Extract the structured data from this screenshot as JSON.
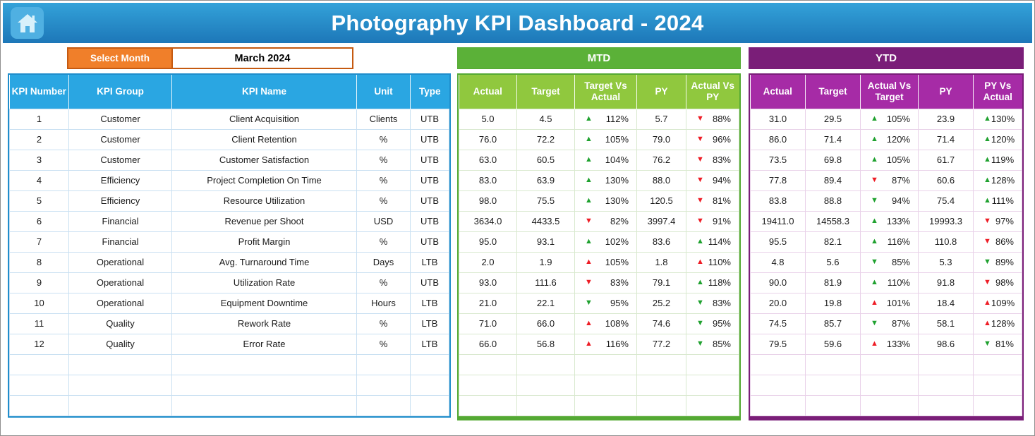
{
  "colors": {
    "banner_top": "#33a2d9",
    "banner_bottom": "#1d77b8",
    "home_tile": "#4fb0e2",
    "home_glyph": "#d8f1fb",
    "select_month_orange": "#f07f2a",
    "select_month_border": "#c55a11",
    "kpi_header_blue": "#2aa6e2",
    "kpi_border_blue": "#1f8dcb",
    "kpi_grid": "#c9e0f2",
    "mtd_bar_green": "#5bb138",
    "mtd_header_green": "#90c83e",
    "mtd_border_green": "#54a933",
    "mtd_grid": "#d9e9cf",
    "ytd_bar_purple": "#7a1e78",
    "ytd_header_purple": "#a62ba6",
    "ytd_border_purple": "#7a1e78",
    "ytd_grid": "#e9d2e9",
    "trend_green": "#1fa12f",
    "trend_red": "#ee1c25"
  },
  "header": {
    "title": "Photography KPI Dashboard - 2024"
  },
  "month_selector": {
    "label": "Select Month",
    "value": "March 2024"
  },
  "kpi_table": {
    "headers": [
      "KPI Number",
      "KPI Group",
      "KPI Name",
      "Unit",
      "Type"
    ],
    "rows": [
      [
        "1",
        "Customer",
        "Client Acquisition",
        "Clients",
        "UTB"
      ],
      [
        "2",
        "Customer",
        "Client Retention",
        "%",
        "UTB"
      ],
      [
        "3",
        "Customer",
        "Customer Satisfaction",
        "%",
        "UTB"
      ],
      [
        "4",
        "Efficiency",
        "Project Completion On Time",
        "%",
        "UTB"
      ],
      [
        "5",
        "Efficiency",
        "Resource Utilization",
        "%",
        "UTB"
      ],
      [
        "6",
        "Financial",
        "Revenue per Shoot",
        "USD",
        "UTB"
      ],
      [
        "7",
        "Financial",
        "Profit Margin",
        "%",
        "UTB"
      ],
      [
        "8",
        "Operational",
        "Avg. Turnaround Time",
        "Days",
        "LTB"
      ],
      [
        "9",
        "Operational",
        "Utilization Rate",
        "%",
        "UTB"
      ],
      [
        "10",
        "Operational",
        "Equipment Downtime",
        "Hours",
        "LTB"
      ],
      [
        "11",
        "Quality",
        "Rework Rate",
        "%",
        "LTB"
      ],
      [
        "12",
        "Quality",
        "Error Rate",
        "%",
        "LTB"
      ]
    ],
    "empty_rows": 3
  },
  "mtd": {
    "title": "MTD",
    "headers": [
      "Actual",
      "Target",
      "Target Vs Actual",
      "PY",
      "Actual Vs PY"
    ],
    "rows": [
      [
        "5.0",
        "4.5",
        {
          "arrow": "up",
          "color": "green",
          "value": "112%"
        },
        "5.7",
        {
          "arrow": "down",
          "color": "red",
          "value": "88%"
        }
      ],
      [
        "76.0",
        "72.2",
        {
          "arrow": "up",
          "color": "green",
          "value": "105%"
        },
        "79.0",
        {
          "arrow": "down",
          "color": "red",
          "value": "96%"
        }
      ],
      [
        "63.0",
        "60.5",
        {
          "arrow": "up",
          "color": "green",
          "value": "104%"
        },
        "76.2",
        {
          "arrow": "down",
          "color": "red",
          "value": "83%"
        }
      ],
      [
        "83.0",
        "63.9",
        {
          "arrow": "up",
          "color": "green",
          "value": "130%"
        },
        "88.0",
        {
          "arrow": "down",
          "color": "red",
          "value": "94%"
        }
      ],
      [
        "98.0",
        "75.5",
        {
          "arrow": "up",
          "color": "green",
          "value": "130%"
        },
        "120.5",
        {
          "arrow": "down",
          "color": "red",
          "value": "81%"
        }
      ],
      [
        "3634.0",
        "4433.5",
        {
          "arrow": "down",
          "color": "red",
          "value": "82%"
        },
        "3997.4",
        {
          "arrow": "down",
          "color": "red",
          "value": "91%"
        }
      ],
      [
        "95.0",
        "93.1",
        {
          "arrow": "up",
          "color": "green",
          "value": "102%"
        },
        "83.6",
        {
          "arrow": "up",
          "color": "green",
          "value": "114%"
        }
      ],
      [
        "2.0",
        "1.9",
        {
          "arrow": "up",
          "color": "red",
          "value": "105%"
        },
        "1.8",
        {
          "arrow": "up",
          "color": "red",
          "value": "110%"
        }
      ],
      [
        "93.0",
        "111.6",
        {
          "arrow": "down",
          "color": "red",
          "value": "83%"
        },
        "79.1",
        {
          "arrow": "up",
          "color": "green",
          "value": "118%"
        }
      ],
      [
        "21.0",
        "22.1",
        {
          "arrow": "down",
          "color": "green",
          "value": "95%"
        },
        "25.2",
        {
          "arrow": "down",
          "color": "green",
          "value": "83%"
        }
      ],
      [
        "71.0",
        "66.0",
        {
          "arrow": "up",
          "color": "red",
          "value": "108%"
        },
        "74.6",
        {
          "arrow": "down",
          "color": "green",
          "value": "95%"
        }
      ],
      [
        "66.0",
        "56.8",
        {
          "arrow": "up",
          "color": "red",
          "value": "116%"
        },
        "77.2",
        {
          "arrow": "down",
          "color": "green",
          "value": "85%"
        }
      ]
    ],
    "empty_rows": 3
  },
  "ytd": {
    "title": "YTD",
    "headers": [
      "Actual",
      "Target",
      "Actual Vs Target",
      "PY",
      "PY Vs Actual"
    ],
    "rows": [
      [
        "31.0",
        "29.5",
        {
          "arrow": "up",
          "color": "green",
          "value": "105%"
        },
        "23.9",
        {
          "arrow": "up",
          "color": "green",
          "value": "130%"
        }
      ],
      [
        "86.0",
        "71.4",
        {
          "arrow": "up",
          "color": "green",
          "value": "120%"
        },
        "71.4",
        {
          "arrow": "up",
          "color": "green",
          "value": "120%"
        }
      ],
      [
        "73.5",
        "69.8",
        {
          "arrow": "up",
          "color": "green",
          "value": "105%"
        },
        "61.7",
        {
          "arrow": "up",
          "color": "green",
          "value": "119%"
        }
      ],
      [
        "77.8",
        "89.4",
        {
          "arrow": "down",
          "color": "red",
          "value": "87%"
        },
        "60.6",
        {
          "arrow": "up",
          "color": "green",
          "value": "128%"
        }
      ],
      [
        "83.8",
        "88.8",
        {
          "arrow": "down",
          "color": "green",
          "value": "94%"
        },
        "75.4",
        {
          "arrow": "up",
          "color": "green",
          "value": "111%"
        }
      ],
      [
        "19411.0",
        "14558.3",
        {
          "arrow": "up",
          "color": "green",
          "value": "133%"
        },
        "19993.3",
        {
          "arrow": "down",
          "color": "red",
          "value": "97%"
        }
      ],
      [
        "95.5",
        "82.1",
        {
          "arrow": "up",
          "color": "green",
          "value": "116%"
        },
        "110.8",
        {
          "arrow": "down",
          "color": "red",
          "value": "86%"
        }
      ],
      [
        "4.8",
        "5.6",
        {
          "arrow": "down",
          "color": "green",
          "value": "85%"
        },
        "5.3",
        {
          "arrow": "down",
          "color": "green",
          "value": "89%"
        }
      ],
      [
        "90.0",
        "81.9",
        {
          "arrow": "up",
          "color": "green",
          "value": "110%"
        },
        "91.8",
        {
          "arrow": "down",
          "color": "red",
          "value": "98%"
        }
      ],
      [
        "20.0",
        "19.8",
        {
          "arrow": "up",
          "color": "red",
          "value": "101%"
        },
        "18.4",
        {
          "arrow": "up",
          "color": "red",
          "value": "109%"
        }
      ],
      [
        "74.5",
        "85.7",
        {
          "arrow": "down",
          "color": "green",
          "value": "87%"
        },
        "58.1",
        {
          "arrow": "up",
          "color": "red",
          "value": "128%"
        }
      ],
      [
        "79.5",
        "59.6",
        {
          "arrow": "up",
          "color": "red",
          "value": "133%"
        },
        "98.6",
        {
          "arrow": "down",
          "color": "green",
          "value": "81%"
        }
      ]
    ],
    "empty_rows": 3
  }
}
